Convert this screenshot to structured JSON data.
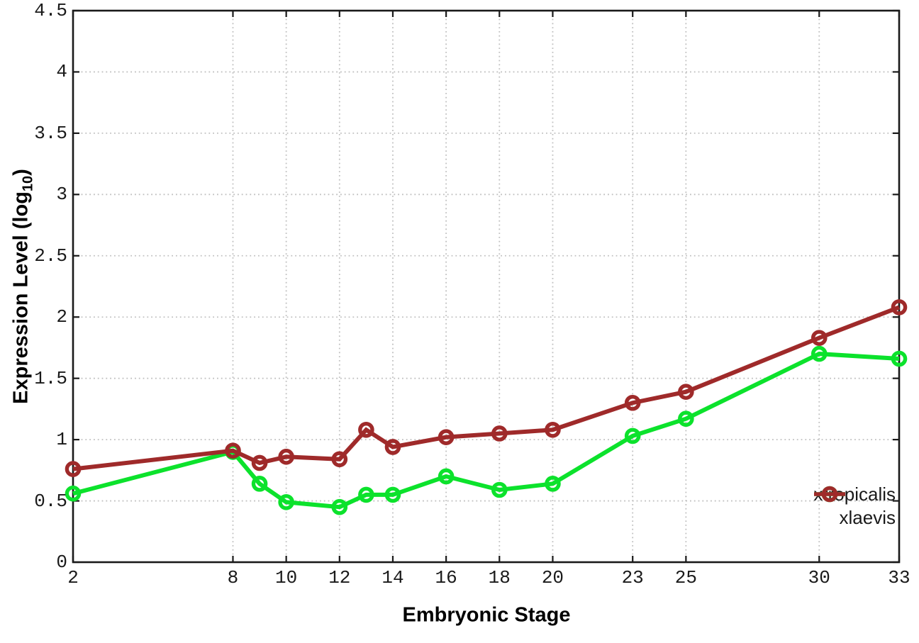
{
  "labels": {
    "x_label": "Embryonic Stage",
    "y_label_prefix": "Expression Level (log",
    "y_label_sub": "10",
    "y_label_suffix": ")"
  },
  "chart_data": {
    "type": "line",
    "title": "",
    "xlabel": "Embryonic Stage",
    "ylabel": "Expression Level (log10)",
    "x": [
      2,
      8,
      9,
      10,
      12,
      13,
      14,
      16,
      18,
      20,
      23,
      25,
      30,
      33
    ],
    "series": [
      {
        "name": "xtropicalis",
        "color": "#0ce22c",
        "marker": "open-circle",
        "values": [
          0.56,
          0.9,
          0.64,
          0.49,
          0.45,
          0.55,
          0.55,
          0.7,
          0.59,
          0.64,
          1.03,
          1.17,
          1.7,
          1.66
        ]
      },
      {
        "name": "xlaevis",
        "color": "#9f2a2a",
        "marker": "open-circle",
        "values": [
          0.76,
          0.91,
          0.81,
          0.86,
          0.84,
          1.08,
          0.94,
          1.02,
          1.05,
          1.08,
          1.3,
          1.39,
          1.83,
          2.08
        ]
      }
    ],
    "xlim": [
      2,
      33
    ],
    "ylim": [
      0,
      4.5
    ],
    "x_ticks": [
      2,
      8,
      10,
      12,
      14,
      16,
      18,
      20,
      23,
      25,
      30,
      33
    ],
    "x_tick_labels": [
      "2",
      "8",
      "10",
      "12",
      "14",
      "16",
      "18",
      "20",
      "23",
      "25",
      "30",
      "33"
    ],
    "y_ticks": [
      0,
      0.5,
      1,
      1.5,
      2,
      2.5,
      3,
      3.5,
      4,
      4.5
    ],
    "y_tick_labels": [
      "0",
      "0.5",
      "1",
      "1.5",
      "2",
      "2.5",
      "3",
      "3.5",
      "4",
      "4.5"
    ],
    "grid": true,
    "legend_position": "bottom-right",
    "axis_color": "#1a1a1a",
    "grid_color": "#c0c0c0",
    "text_color": "#1a1a1a"
  }
}
